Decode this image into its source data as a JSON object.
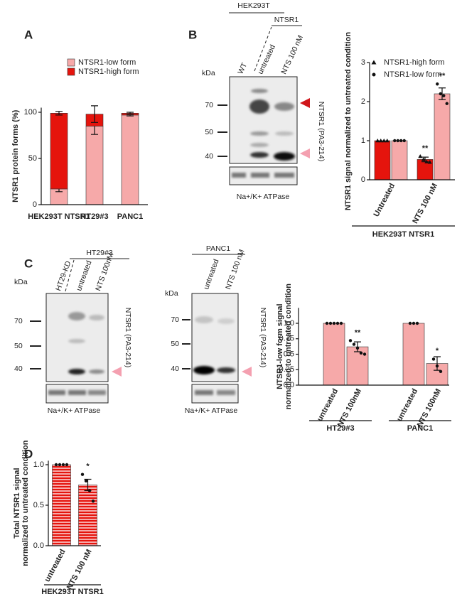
{
  "panels": [
    "A",
    "B",
    "C",
    "D"
  ],
  "blot_b": {
    "cell_line": "HEK293T",
    "construct": "NTSR1",
    "lanes": [
      "WT",
      "untreated",
      "NTS 100 nM"
    ],
    "kda": "kDa",
    "markers": [
      70,
      50,
      40
    ],
    "antibody": "NTSR1 (PA3-214)",
    "loading": "Na+/K+ ATPase"
  },
  "blot_c1": {
    "cell_line": "HT29#3",
    "lanes": [
      "HT29-KD",
      "untreated",
      "NTS 100nM"
    ],
    "kda": "kDa",
    "markers": [
      70,
      50,
      40
    ],
    "antibody": "NTSR1 (PA3-214)",
    "loading": "Na+/K+ ATPase"
  },
  "blot_c2": {
    "cell_line": "PANC1",
    "lanes": [
      "untreated",
      "NTS 100 nM"
    ],
    "kda": "kDa",
    "markers": [
      70,
      50,
      40
    ],
    "antibody": "NTSR1 (PA3-214)",
    "loading": "Na+/K+ ATPase"
  },
  "chart_data": [
    {
      "type": "bar",
      "stacked": true,
      "ylabel": "NTSR1 protein forms (%)",
      "categories": [
        "HEK293T NTSR1",
        "HT29#3",
        "PANC1"
      ],
      "series": [
        {
          "name": "NTSR1-low form",
          "color": "#f6a9a9",
          "values": [
            17,
            85,
            97
          ],
          "errors": [
            3,
            9,
            1
          ]
        },
        {
          "name": "NTSR1-high form",
          "color": "#e5140d",
          "values": [
            82,
            13,
            2
          ],
          "errors": [
            2,
            9,
            1
          ]
        }
      ],
      "ylim": [
        0,
        105
      ],
      "yticks": [
        0,
        50,
        100
      ],
      "legend": "upper left"
    },
    {
      "type": "bar",
      "ylabel": "NTSR1 signal normalized to untreated condition",
      "categories": [
        "Untreated",
        "NTS 100 nM"
      ],
      "group_label": "HEK293T NTSR1",
      "series": [
        {
          "name": "NTSR1-high form",
          "color": "#e5140d",
          "marker": "triangle",
          "values": [
            1,
            0.52
          ],
          "errors": [
            0,
            0.06
          ],
          "points": [
            [
              1,
              1,
              1,
              1
            ],
            [
              0.6,
              0.52,
              0.46,
              0.45
            ]
          ],
          "annotations": [
            null,
            "**"
          ]
        },
        {
          "name": "NTSR1-low form",
          "color": "#f6a9a9",
          "marker": "circle",
          "values": [
            1,
            2.2
          ],
          "errors": [
            0,
            0.15
          ],
          "points": [
            [
              1,
              1,
              1,
              1
            ],
            [
              2.45,
              2.2,
              2.15,
              1.95
            ]
          ],
          "annotations": [
            null,
            "**"
          ]
        }
      ],
      "ylim": [
        0,
        3
      ],
      "yticks": [
        0,
        1,
        2,
        3
      ],
      "legend": "upper left"
    },
    {
      "type": "bar",
      "ylabel": [
        "NTSR1-low form signal",
        "normalized to untreated condition"
      ],
      "ylim": [
        0,
        1.25
      ],
      "yticks": [
        {
          "value": 0,
          "label": "0.0"
        },
        0.25,
        0.5,
        0.75,
        {
          "value": 1,
          "label": "1.0"
        }
      ],
      "color": "#f6a9a9",
      "groups": [
        {
          "name": "HT29#3",
          "categories": [
            "untreated",
            "NTS 100nM"
          ],
          "values": [
            1,
            0.62
          ],
          "errors": [
            0,
            0.08
          ],
          "points": [
            [
              1,
              1,
              1,
              1,
              1
            ],
            [
              0.72,
              0.66,
              0.6,
              0.52,
              0.5
            ]
          ],
          "annotations": [
            null,
            "**"
          ]
        },
        {
          "name": "PANC1",
          "categories": [
            "untreated",
            "NTS 100nM"
          ],
          "values": [
            1,
            0.35
          ],
          "errors": [
            0,
            0.11
          ],
          "points": [
            [
              1,
              1,
              1
            ],
            [
              0.42,
              0.31,
              0.22
            ]
          ],
          "annotations": [
            null,
            "*"
          ]
        }
      ]
    },
    {
      "type": "bar",
      "ylabel": [
        "Total NTSR1 signal",
        "normalized to untreated condition"
      ],
      "ylim": [
        0,
        1.05
      ],
      "yticks": [
        {
          "value": 0,
          "label": "0.0"
        },
        0.5,
        {
          "value": 1,
          "label": "1.0"
        }
      ],
      "categories": [
        "untreated",
        "NTS 100 nM"
      ],
      "values": [
        1,
        0.75
      ],
      "errors": [
        0,
        0.07
      ],
      "points": [
        [
          1,
          1,
          1,
          1
        ],
        [
          0.88,
          0.8,
          0.68,
          0.55
        ]
      ],
      "annotations": [
        null,
        "*"
      ],
      "color": "#e5140d",
      "stripe_color": "#f6a9a9",
      "pattern": "horizontal-stripes",
      "group_label": "HEK293T NTSR1"
    }
  ]
}
